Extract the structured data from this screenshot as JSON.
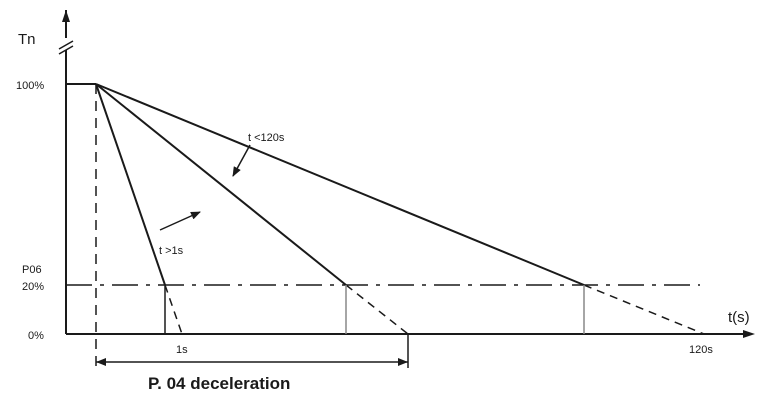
{
  "diagram": {
    "y_axis_label": "Tn",
    "x_axis_label": "t(s)",
    "y_tick_100": "100%",
    "y_tick_p06": "P06",
    "y_tick_20": "20%",
    "y_tick_0": "0%",
    "x_tick_1s": "1s",
    "x_tick_120s": "120s",
    "annotation_t_lt_120s": "t <120s",
    "annotation_t_gt_1s": "t >1s",
    "dimension_label": "P. 04 deceleration",
    "line_color": "#1a1a1a",
    "guide_color": "#888888"
  }
}
